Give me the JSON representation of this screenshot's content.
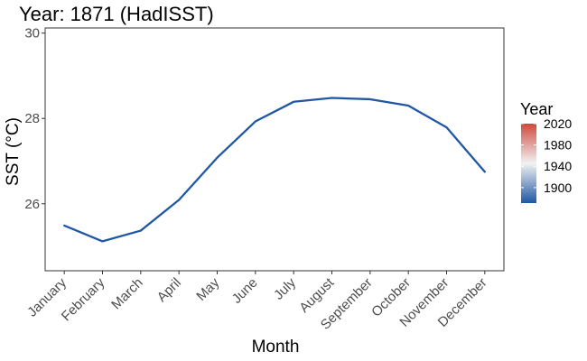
{
  "chart_data": {
    "type": "line",
    "title": "Year: 1871 (HadISST)",
    "xlabel": "Month",
    "ylabel": "SST (°C)",
    "categories": [
      "January",
      "February",
      "March",
      "April",
      "May",
      "June",
      "July",
      "August",
      "September",
      "October",
      "November",
      "December"
    ],
    "series": [
      {
        "values": [
          25.49,
          25.12,
          25.37,
          26.09,
          27.08,
          27.93,
          28.39,
          28.48,
          28.45,
          28.3,
          27.79,
          26.75
        ],
        "color": "#2057a3"
      }
    ],
    "ylim": [
      24.43,
      30.12
    ],
    "yticks": [
      "26",
      "28",
      "30"
    ],
    "grid": false,
    "legend": {
      "title": "Year",
      "position": "right",
      "labels": [
        "2020",
        "1980",
        "1940",
        "1900"
      ],
      "scale_range": [
        1871,
        2020
      ],
      "colors": [
        "#2057a3",
        "#f2f2f2",
        "#cd4a3d"
      ]
    }
  }
}
